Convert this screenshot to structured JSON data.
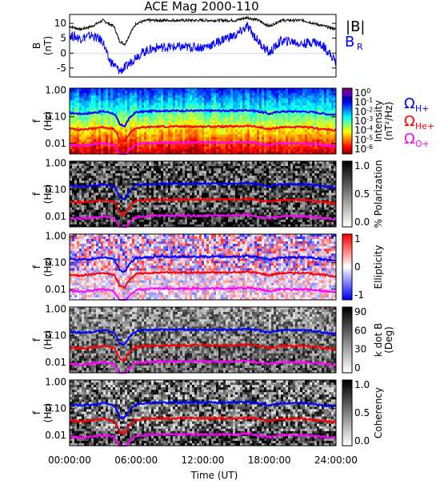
{
  "title": "ACE Mag 2000-110",
  "colors": {
    "black": "#000000",
    "blue": "#0000ff",
    "red": "#ff0000",
    "magenta": "#ff00ff"
  },
  "chart_data": [
    {
      "type": "line",
      "panel": "B",
      "ylabel": "B",
      "yunit": "(nT)",
      "ylim": [
        -8,
        13
      ],
      "yticks": [
        10,
        5,
        0,
        -5
      ],
      "legend": [
        {
          "name": "|B|",
          "color": "#000000"
        },
        {
          "name": "B",
          "sub": "R",
          "color": "#0000ff"
        }
      ],
      "x_hours": [
        0,
        1,
        2,
        3,
        3.5,
        4,
        4.5,
        5,
        5.5,
        6,
        7,
        8,
        9,
        10,
        11,
        12,
        13,
        14,
        15,
        16,
        17,
        18,
        19,
        20,
        21,
        22,
        23,
        24
      ],
      "series": [
        {
          "name": "|B|",
          "color": "#000000",
          "values": [
            9,
            8,
            9,
            11,
            10,
            9,
            4,
            3,
            7,
            10,
            11,
            11,
            11,
            11,
            11,
            11,
            11,
            11,
            11,
            12,
            11,
            9,
            11,
            11,
            11,
            10,
            9,
            8
          ]
        },
        {
          "name": "B",
          "color": "#0000ff",
          "values": [
            6,
            5,
            6,
            4,
            -2,
            -4,
            -6,
            -5,
            -3,
            -1,
            1,
            2,
            2,
            2,
            2,
            2,
            3,
            5,
            6,
            9,
            4,
            0,
            4,
            4,
            3,
            4,
            2,
            -3
          ]
        }
      ]
    },
    {
      "type": "heatmap",
      "panel": "Intensity",
      "ylabel": "f",
      "yunit": "(Hz)",
      "yticks": [
        "1.00",
        "0.10",
        "0.01"
      ],
      "colorbar": {
        "labels": [
          "10",
          "10",
          "10",
          "10",
          "10",
          "10",
          "10"
        ],
        "exponents": [
          "0",
          "-1",
          "-2",
          "-3",
          "-4",
          "-5",
          "-6"
        ],
        "title_lines": [
          "Intensity",
          "(nT²/Hz)"
        ]
      },
      "legend": [
        {
          "name": "Ω",
          "sub": "H+",
          "color": "#0000ff"
        },
        {
          "name": "Ω",
          "sub": "He+",
          "color": "#ff0000"
        },
        {
          "name": "Ω",
          "sub": "O+",
          "color": "#ff00ff"
        }
      ]
    },
    {
      "type": "heatmap",
      "panel": "Polarization",
      "ylabel": "f",
      "yunit": "(Hz)",
      "yticks": [
        "1.00",
        "0.10",
        "0.01"
      ],
      "colorbar": {
        "labels": [
          "1.0",
          "0.5",
          "0.0"
        ],
        "title_lines": [
          "% Polarization"
        ]
      }
    },
    {
      "type": "heatmap",
      "panel": "Ellipticity",
      "ylabel": "f",
      "yunit": "(Hz)",
      "yticks": [
        "1.00",
        "0.10",
        "0.01"
      ],
      "colorbar": {
        "labels": [
          "1",
          "0",
          "-1"
        ],
        "title_lines": [
          "Ellipticity"
        ]
      }
    },
    {
      "type": "heatmap",
      "panel": "kdotB",
      "ylabel": "f",
      "yunit": "(Hz)",
      "yticks": [
        "1.00",
        "0.10",
        "0.01"
      ],
      "colorbar": {
        "labels": [
          "90",
          "60",
          "30",
          "0"
        ],
        "title_lines": [
          "k dot B",
          "(Deg)"
        ]
      }
    },
    {
      "type": "heatmap",
      "panel": "Coherency",
      "ylabel": "f",
      "yunit": "(Hz)",
      "yticks": [
        "1.00",
        "0.10",
        "0.01"
      ],
      "colorbar": {
        "labels": [
          "1.0",
          "0.5",
          "0.0"
        ],
        "title_lines": [
          "Coherency"
        ]
      }
    }
  ],
  "gyro_lines": {
    "x_hours": [
      0,
      1,
      2,
      3,
      3.5,
      4,
      4.5,
      5,
      5.5,
      6,
      7,
      8,
      9,
      10,
      11,
      12,
      13,
      14,
      15,
      16,
      17,
      18,
      19,
      20,
      21,
      22,
      23,
      24
    ],
    "H": [
      0.14,
      0.13,
      0.14,
      0.16,
      0.15,
      0.13,
      0.05,
      0.045,
      0.1,
      0.15,
      0.16,
      0.17,
      0.17,
      0.17,
      0.17,
      0.17,
      0.17,
      0.17,
      0.17,
      0.18,
      0.16,
      0.13,
      0.16,
      0.16,
      0.16,
      0.15,
      0.13,
      0.12
    ],
    "He": [
      0.036,
      0.033,
      0.036,
      0.041,
      0.038,
      0.034,
      0.013,
      0.012,
      0.026,
      0.038,
      0.041,
      0.043,
      0.043,
      0.043,
      0.043,
      0.043,
      0.043,
      0.043,
      0.043,
      0.046,
      0.041,
      0.034,
      0.041,
      0.041,
      0.041,
      0.038,
      0.034,
      0.031
    ],
    "O": [
      0.009,
      0.008,
      0.009,
      0.01,
      0.0095,
      0.0085,
      0.0033,
      0.003,
      0.0065,
      0.0095,
      0.01,
      0.0107,
      0.0107,
      0.0107,
      0.0107,
      0.0107,
      0.0107,
      0.0107,
      0.0107,
      0.0115,
      0.01,
      0.0085,
      0.01,
      0.01,
      0.01,
      0.0095,
      0.0085,
      0.0077
    ]
  },
  "xaxis": {
    "ticks": [
      "00:00:00",
      "06:00:00",
      "12:00:00",
      "18:00:00",
      "24:00:00"
    ],
    "tick_hours": [
      0,
      6,
      12,
      18,
      24
    ],
    "label": "Time (UT)"
  }
}
